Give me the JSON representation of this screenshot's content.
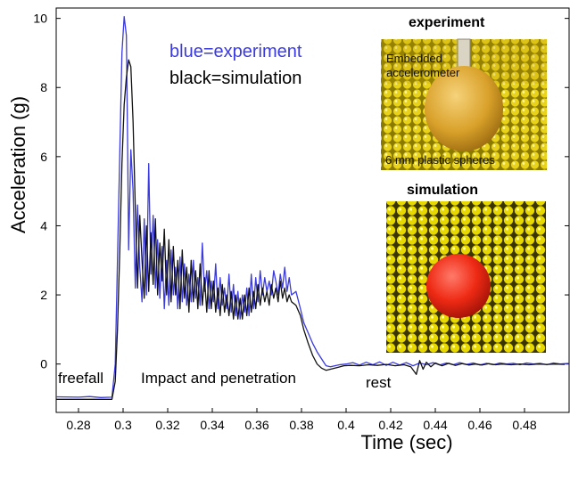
{
  "chart_data": {
    "type": "line",
    "xlabel": "Time (sec)",
    "ylabel": "Acceleration (g)",
    "xlim": [
      0.27,
      0.5
    ],
    "ylim": [
      -1.4,
      10.3
    ],
    "x_ticks": [
      "0.28",
      "0.3",
      "0.32",
      "0.34",
      "0.36",
      "0.38",
      "0.4",
      "0.42",
      "0.44",
      "0.46",
      "0.48"
    ],
    "y_ticks": [
      "0",
      "2",
      "4",
      "6",
      "8",
      "10"
    ],
    "grid": false,
    "legend": {
      "experiment_text": "blue=experiment",
      "simulation_text": "black=simulation"
    },
    "annotations": {
      "freefall": "freefall",
      "impact": "Impact and penetration",
      "rest": "rest"
    },
    "series": [
      {
        "name": "experiment",
        "color": "#3a3adf",
        "points": [
          [
            0.27,
            -0.95
          ],
          [
            0.28,
            -0.96
          ],
          [
            0.285,
            -0.94
          ],
          [
            0.29,
            -0.97
          ],
          [
            0.295,
            -0.96
          ],
          [
            0.2965,
            0.0
          ],
          [
            0.2975,
            3.0
          ],
          [
            0.2985,
            6.0
          ],
          [
            0.2995,
            9.0
          ],
          [
            0.3005,
            10.05
          ],
          [
            0.3015,
            9.5
          ],
          [
            0.302,
            6.5
          ],
          [
            0.3025,
            3.3
          ],
          [
            0.3035,
            6.2
          ],
          [
            0.3045,
            5.0
          ],
          [
            0.3055,
            2.2
          ],
          [
            0.3065,
            4.6
          ],
          [
            0.3075,
            2.8
          ],
          [
            0.3085,
            1.8
          ],
          [
            0.3095,
            4.2
          ],
          [
            0.3105,
            2.0
          ],
          [
            0.3115,
            5.8
          ],
          [
            0.3125,
            2.6
          ],
          [
            0.3135,
            4.3
          ],
          [
            0.3145,
            2.2
          ],
          [
            0.3155,
            3.6
          ],
          [
            0.3165,
            1.9
          ],
          [
            0.3175,
            3.4
          ],
          [
            0.3185,
            1.6
          ],
          [
            0.3195,
            3.0
          ],
          [
            0.3205,
            1.7
          ],
          [
            0.3215,
            3.3
          ],
          [
            0.3225,
            2.0
          ],
          [
            0.3235,
            2.8
          ],
          [
            0.3245,
            1.6
          ],
          [
            0.3255,
            3.1
          ],
          [
            0.3265,
            1.8
          ],
          [
            0.3275,
            2.9
          ],
          [
            0.3285,
            1.7
          ],
          [
            0.3295,
            2.6
          ],
          [
            0.3305,
            1.8
          ],
          [
            0.3315,
            3.0
          ],
          [
            0.3325,
            1.9
          ],
          [
            0.3335,
            2.5
          ],
          [
            0.3345,
            1.7
          ],
          [
            0.3355,
            3.5
          ],
          [
            0.3365,
            2.1
          ],
          [
            0.3375,
            2.7
          ],
          [
            0.3385,
            1.6
          ],
          [
            0.3395,
            2.4
          ],
          [
            0.3405,
            1.8
          ],
          [
            0.3415,
            2.9
          ],
          [
            0.3425,
            1.6
          ],
          [
            0.3435,
            2.5
          ],
          [
            0.3445,
            1.7
          ],
          [
            0.3455,
            2.2
          ],
          [
            0.3465,
            1.6
          ],
          [
            0.3475,
            2.6
          ],
          [
            0.3485,
            1.5
          ],
          [
            0.3495,
            2.3
          ],
          [
            0.3505,
            1.4
          ],
          [
            0.3515,
            2.1
          ],
          [
            0.3525,
            1.3
          ],
          [
            0.3535,
            2.0
          ],
          [
            0.3545,
            1.5
          ],
          [
            0.3555,
            2.2
          ],
          [
            0.3565,
            1.4
          ],
          [
            0.3575,
            2.6
          ],
          [
            0.3585,
            1.6
          ],
          [
            0.3595,
            2.5
          ],
          [
            0.3605,
            1.8
          ],
          [
            0.3615,
            2.7
          ],
          [
            0.3625,
            2.0
          ],
          [
            0.3635,
            2.5
          ],
          [
            0.3645,
            2.1
          ],
          [
            0.3655,
            2.4
          ],
          [
            0.3665,
            2.0
          ],
          [
            0.3675,
            2.7
          ],
          [
            0.3685,
            2.4
          ],
          [
            0.3695,
            2.0
          ],
          [
            0.3705,
            2.6
          ],
          [
            0.3715,
            2.2
          ],
          [
            0.3725,
            2.8
          ],
          [
            0.3735,
            2.1
          ],
          [
            0.3745,
            2.5
          ],
          [
            0.3755,
            2.0
          ],
          [
            0.3775,
            2.1
          ],
          [
            0.3795,
            1.6
          ],
          [
            0.381,
            1.2
          ],
          [
            0.383,
            0.9
          ],
          [
            0.385,
            0.6
          ],
          [
            0.387,
            0.35
          ],
          [
            0.389,
            0.15
          ],
          [
            0.391,
            -0.05
          ],
          [
            0.393,
            -0.08
          ],
          [
            0.395,
            -0.05
          ],
          [
            0.397,
            -0.02
          ],
          [
            0.4,
            0.0
          ],
          [
            0.403,
            0.04
          ],
          [
            0.406,
            -0.03
          ],
          [
            0.409,
            0.05
          ],
          [
            0.412,
            -0.02
          ],
          [
            0.415,
            0.06
          ],
          [
            0.418,
            -0.04
          ],
          [
            0.421,
            0.05
          ],
          [
            0.424,
            -0.03
          ],
          [
            0.427,
            0.04
          ],
          [
            0.43,
            -0.05
          ],
          [
            0.433,
            0.03
          ],
          [
            0.436,
            -0.02
          ],
          [
            0.439,
            0.04
          ],
          [
            0.442,
            -0.03
          ],
          [
            0.445,
            0.03
          ],
          [
            0.448,
            -0.02
          ],
          [
            0.451,
            0.04
          ],
          [
            0.454,
            -0.01
          ],
          [
            0.457,
            0.03
          ],
          [
            0.46,
            -0.03
          ],
          [
            0.463,
            0.02
          ],
          [
            0.466,
            -0.02
          ],
          [
            0.469,
            0.03
          ],
          [
            0.472,
            0.0
          ],
          [
            0.475,
            0.02
          ],
          [
            0.478,
            -0.02
          ],
          [
            0.481,
            0.03
          ],
          [
            0.484,
            0.0
          ],
          [
            0.487,
            0.02
          ],
          [
            0.49,
            -0.02
          ],
          [
            0.493,
            0.03
          ],
          [
            0.496,
            0.0
          ],
          [
            0.5,
            0.02
          ]
        ]
      },
      {
        "name": "simulation",
        "color": "#111111",
        "points": [
          [
            0.27,
            -1.02
          ],
          [
            0.28,
            -1.02
          ],
          [
            0.29,
            -1.02
          ],
          [
            0.295,
            -1.02
          ],
          [
            0.2965,
            -0.5
          ],
          [
            0.2975,
            1.0
          ],
          [
            0.2985,
            3.2
          ],
          [
            0.2995,
            5.8
          ],
          [
            0.3005,
            7.5
          ],
          [
            0.3015,
            8.3
          ],
          [
            0.3025,
            8.8
          ],
          [
            0.3035,
            8.6
          ],
          [
            0.3045,
            7.0
          ],
          [
            0.3055,
            4.5
          ],
          [
            0.3065,
            2.2
          ],
          [
            0.3075,
            4.3
          ],
          [
            0.3085,
            3.0
          ],
          [
            0.3095,
            1.9
          ],
          [
            0.3105,
            4.0
          ],
          [
            0.3115,
            2.1
          ],
          [
            0.3125,
            3.8
          ],
          [
            0.3135,
            2.3
          ],
          [
            0.3145,
            4.2
          ],
          [
            0.3155,
            2.0
          ],
          [
            0.3165,
            3.5
          ],
          [
            0.3175,
            2.4
          ],
          [
            0.3185,
            3.9
          ],
          [
            0.3195,
            2.0
          ],
          [
            0.3205,
            3.6
          ],
          [
            0.3215,
            1.8
          ],
          [
            0.3225,
            3.4
          ],
          [
            0.3235,
            2.0
          ],
          [
            0.3245,
            3.0
          ],
          [
            0.3255,
            1.6
          ],
          [
            0.3265,
            3.3
          ],
          [
            0.3275,
            1.9
          ],
          [
            0.3285,
            2.8
          ],
          [
            0.3295,
            1.5
          ],
          [
            0.3305,
            3.0
          ],
          [
            0.3315,
            1.8
          ],
          [
            0.3325,
            2.7
          ],
          [
            0.3335,
            1.6
          ],
          [
            0.3345,
            2.9
          ],
          [
            0.3355,
            1.7
          ],
          [
            0.3365,
            2.5
          ],
          [
            0.3375,
            1.5
          ],
          [
            0.3385,
            2.7
          ],
          [
            0.3395,
            1.6
          ],
          [
            0.3405,
            2.4
          ],
          [
            0.3415,
            1.5
          ],
          [
            0.3425,
            2.2
          ],
          [
            0.3435,
            1.4
          ],
          [
            0.3445,
            2.3
          ],
          [
            0.3455,
            1.5
          ],
          [
            0.3465,
            2.0
          ],
          [
            0.3475,
            1.4
          ],
          [
            0.3485,
            2.1
          ],
          [
            0.3495,
            1.3
          ],
          [
            0.3505,
            2.0
          ],
          [
            0.3515,
            1.3
          ],
          [
            0.3525,
            1.9
          ],
          [
            0.3535,
            1.3
          ],
          [
            0.3545,
            2.0
          ],
          [
            0.3555,
            1.4
          ],
          [
            0.3565,
            2.2
          ],
          [
            0.3575,
            1.5
          ],
          [
            0.3585,
            2.1
          ],
          [
            0.3595,
            1.6
          ],
          [
            0.3605,
            2.3
          ],
          [
            0.3615,
            1.7
          ],
          [
            0.3625,
            2.2
          ],
          [
            0.3635,
            1.8
          ],
          [
            0.3645,
            2.1
          ],
          [
            0.3655,
            1.7
          ],
          [
            0.3665,
            2.3
          ],
          [
            0.3675,
            1.9
          ],
          [
            0.3685,
            2.2
          ],
          [
            0.3695,
            1.8
          ],
          [
            0.3705,
            2.4
          ],
          [
            0.3715,
            1.9
          ],
          [
            0.3725,
            2.2
          ],
          [
            0.3735,
            1.8
          ],
          [
            0.3745,
            2.0
          ],
          [
            0.3755,
            1.8
          ],
          [
            0.3775,
            1.7
          ],
          [
            0.3795,
            1.4
          ],
          [
            0.381,
            1.0
          ],
          [
            0.383,
            0.6
          ],
          [
            0.385,
            0.25
          ],
          [
            0.387,
            0.0
          ],
          [
            0.389,
            -0.12
          ],
          [
            0.391,
            -0.18
          ],
          [
            0.393,
            -0.15
          ],
          [
            0.396,
            -0.1
          ],
          [
            0.399,
            -0.05
          ],
          [
            0.402,
            -0.04
          ],
          [
            0.406,
            -0.05
          ],
          [
            0.41,
            -0.02
          ],
          [
            0.414,
            -0.04
          ],
          [
            0.418,
            -0.01
          ],
          [
            0.422,
            -0.05
          ],
          [
            0.426,
            -0.02
          ],
          [
            0.429,
            -0.08
          ],
          [
            0.4315,
            -0.3
          ],
          [
            0.433,
            0.1
          ],
          [
            0.4345,
            -0.15
          ],
          [
            0.436,
            0.05
          ],
          [
            0.438,
            -0.08
          ],
          [
            0.44,
            0.03
          ],
          [
            0.443,
            -0.05
          ],
          [
            0.446,
            0.02
          ],
          [
            0.449,
            -0.04
          ],
          [
            0.452,
            0.01
          ],
          [
            0.455,
            -0.03
          ],
          [
            0.458,
            0.0
          ],
          [
            0.461,
            -0.03
          ],
          [
            0.464,
            0.01
          ],
          [
            0.467,
            -0.02
          ],
          [
            0.47,
            0.0
          ],
          [
            0.474,
            -0.02
          ],
          [
            0.478,
            0.0
          ],
          [
            0.482,
            -0.02
          ],
          [
            0.486,
            0.0
          ],
          [
            0.49,
            -0.01
          ],
          [
            0.494,
            0.0
          ],
          [
            0.498,
            -0.01
          ]
        ]
      }
    ]
  },
  "inset_experiment": {
    "title": "experiment",
    "label_sensor": [
      "Embedded",
      "accelerometer"
    ],
    "label_spheres": "6 mm plastic spheres"
  },
  "inset_simulation": {
    "title": "simulation"
  }
}
